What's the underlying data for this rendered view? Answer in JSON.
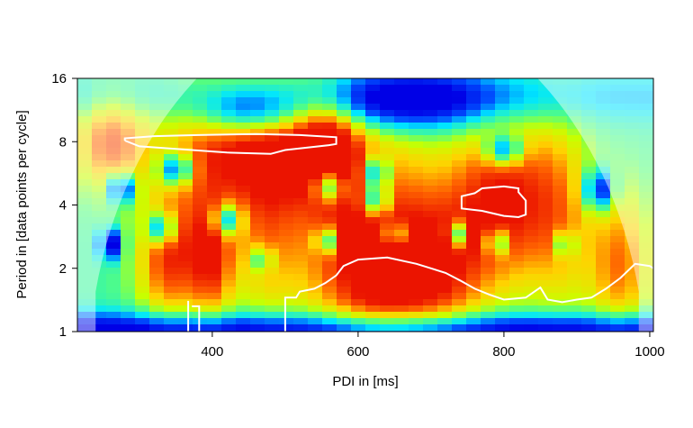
{
  "chart_data": {
    "type": "heatmap",
    "title": "",
    "xlabel": "PDI in [ms]",
    "ylabel": "Period in [data points per cycle]",
    "x_ticks": [
      400,
      600,
      800,
      1000
    ],
    "x_tick_labels": [
      "400",
      "600",
      "800",
      "1000"
    ],
    "xlim": [
      215,
      1005
    ],
    "y_scale": "log2",
    "y_ticks": [
      1,
      2,
      4,
      8,
      16
    ],
    "y_tick_labels": [
      "1",
      "2",
      "4",
      "8",
      "16"
    ],
    "ylim": [
      1,
      16
    ],
    "colormap": "rainbow (blue = low power, red = high power)",
    "cone_of_influence": true,
    "significance_contours": "white",
    "blobs": [
      {
        "x": 460,
        "period": 8.3,
        "power": 1.0,
        "sx": 110,
        "sy": 0.25
      },
      {
        "x": 260,
        "period": 8.0,
        "power": 0.9,
        "sx": 50,
        "sy": 0.2
      },
      {
        "x": 560,
        "period": 8.0,
        "power": 0.85,
        "sx": 45,
        "sy": 0.2
      },
      {
        "x": 800,
        "period": 4.2,
        "power": 1.0,
        "sx": 75,
        "sy": 0.35
      },
      {
        "x": 340,
        "period": 2.2,
        "power": 0.9,
        "sx": 45,
        "sy": 0.25
      },
      {
        "x": 400,
        "period": 2.2,
        "power": 0.85,
        "sx": 30,
        "sy": 0.25
      },
      {
        "x": 640,
        "period": 1.9,
        "power": 1.0,
        "sx": 80,
        "sy": 0.3
      },
      {
        "x": 720,
        "period": 2.0,
        "power": 0.75,
        "sx": 60,
        "sy": 0.3
      },
      {
        "x": 960,
        "period": 2.1,
        "power": 0.85,
        "sx": 45,
        "sy": 0.3
      },
      {
        "x": 560,
        "period": 3.5,
        "power": 0.75,
        "sx": 90,
        "sy": 0.45
      },
      {
        "x": 380,
        "period": 4.5,
        "power": 0.6,
        "sx": 60,
        "sy": 0.4
      },
      {
        "x": 470,
        "period": 2.9,
        "power": 0.7,
        "sx": 45,
        "sy": 0.35
      },
      {
        "x": 880,
        "period": 3.5,
        "power": 0.7,
        "sx": 45,
        "sy": 0.4
      },
      {
        "x": 660,
        "period": 6.0,
        "power": 0.6,
        "sx": 70,
        "sy": 0.3
      }
    ],
    "low_spots": [
      {
        "x": 660,
        "period": 12.5,
        "sx": 140,
        "sy": 0.12
      },
      {
        "x": 450,
        "period": 11.0,
        "sx": 70,
        "sy": 0.1
      },
      {
        "x": 800,
        "period": 7.3,
        "sx": 25,
        "sy": 0.06
      },
      {
        "x": 625,
        "period": 5.7,
        "sx": 18,
        "sy": 0.06
      },
      {
        "x": 560,
        "period": 4.9,
        "sx": 20,
        "sy": 0.06
      },
      {
        "x": 625,
        "period": 4.2,
        "sx": 18,
        "sy": 0.06
      },
      {
        "x": 350,
        "period": 5.9,
        "sx": 22,
        "sy": 0.06
      },
      {
        "x": 275,
        "period": 4.8,
        "sx": 18,
        "sy": 0.06
      },
      {
        "x": 420,
        "period": 3.4,
        "sx": 18,
        "sy": 0.06
      },
      {
        "x": 330,
        "period": 3.1,
        "sx": 18,
        "sy": 0.06
      },
      {
        "x": 260,
        "period": 2.6,
        "sx": 15,
        "sy": 0.06
      },
      {
        "x": 470,
        "period": 2.2,
        "sx": 10,
        "sy": 0.05
      },
      {
        "x": 555,
        "period": 2.7,
        "sx": 12,
        "sy": 0.05
      },
      {
        "x": 650,
        "period": 2.9,
        "sx": 12,
        "sy": 0.05
      },
      {
        "x": 735,
        "period": 2.9,
        "sx": 12,
        "sy": 0.05
      },
      {
        "x": 790,
        "period": 2.65,
        "sx": 12,
        "sy": 0.05
      },
      {
        "x": 885,
        "period": 2.6,
        "sx": 10,
        "sy": 0.05
      },
      {
        "x": 930,
        "period": 4.7,
        "sx": 20,
        "sy": 0.08
      }
    ],
    "contours": [
      {
        "points": [
          [
            280,
            8.1
          ],
          [
            300,
            7.6
          ],
          [
            350,
            7.4
          ],
          [
            420,
            7.1
          ],
          [
            480,
            7.0
          ],
          [
            500,
            7.3
          ],
          [
            560,
            7.7
          ],
          [
            570,
            7.8
          ],
          [
            570,
            8.4
          ],
          [
            520,
            8.6
          ],
          [
            460,
            8.7
          ],
          [
            380,
            8.6
          ],
          [
            320,
            8.5
          ],
          [
            280,
            8.3
          ],
          [
            280,
            8.1
          ]
        ]
      },
      {
        "points": [
          [
            742,
            4.2
          ],
          [
            742,
            3.85
          ],
          [
            770,
            3.75
          ],
          [
            800,
            3.55
          ],
          [
            820,
            3.5
          ],
          [
            830,
            3.6
          ],
          [
            830,
            4.2
          ],
          [
            820,
            4.6
          ],
          [
            820,
            4.8
          ],
          [
            800,
            4.9
          ],
          [
            770,
            4.8
          ],
          [
            760,
            4.55
          ],
          [
            742,
            4.4
          ],
          [
            742,
            4.2
          ]
        ]
      },
      {
        "points": [
          [
            500,
            1
          ],
          [
            500,
            1.45
          ],
          [
            515,
            1.45
          ],
          [
            520,
            1.55
          ],
          [
            540,
            1.6
          ],
          [
            555,
            1.7
          ],
          [
            570,
            1.85
          ],
          [
            580,
            2.05
          ],
          [
            600,
            2.2
          ],
          [
            640,
            2.25
          ],
          [
            680,
            2.1
          ],
          [
            700,
            2.0
          ],
          [
            720,
            1.9
          ],
          [
            740,
            1.75
          ],
          [
            760,
            1.6
          ],
          [
            780,
            1.5
          ],
          [
            800,
            1.42
          ],
          [
            830,
            1.45
          ],
          [
            850,
            1.62
          ],
          [
            860,
            1.42
          ],
          [
            880,
            1.38
          ],
          [
            900,
            1.42
          ],
          [
            920,
            1.45
          ],
          [
            940,
            1.6
          ],
          [
            960,
            1.8
          ],
          [
            980,
            2.1
          ],
          [
            1000,
            2.05
          ],
          [
            1005,
            2.0
          ]
        ]
      },
      {
        "points": [
          [
            367,
            1
          ],
          [
            367,
            1.4
          ]
        ]
      },
      {
        "points": [
          [
            372,
            1.32
          ],
          [
            382,
            1.32
          ],
          [
            382,
            1
          ]
        ]
      }
    ]
  }
}
